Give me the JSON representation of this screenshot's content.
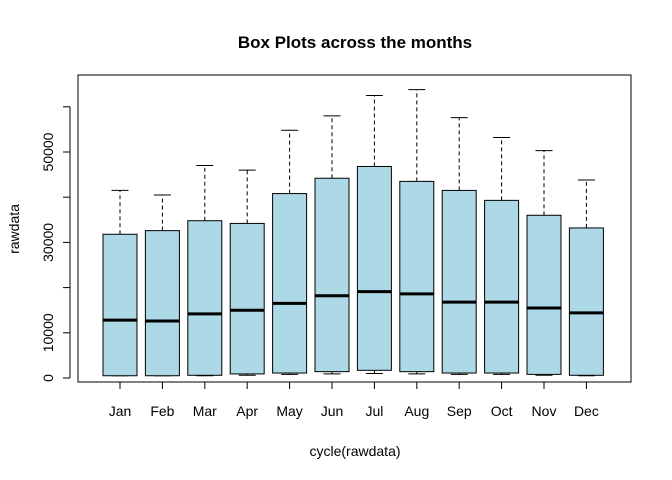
{
  "chart_data": {
    "type": "boxplot",
    "title": "Box Plots across the months",
    "xlabel": "cycle(rawdata)",
    "ylabel": "rawdata",
    "ylim": [
      0,
      65000
    ],
    "yticks": [
      0,
      10000,
      30000,
      50000
    ],
    "ytick_labels": [
      "0",
      "10000",
      "30000",
      "50000"
    ],
    "categories": [
      "Jan",
      "Feb",
      "Mar",
      "Apr",
      "May",
      "Jun",
      "Jul",
      "Aug",
      "Sep",
      "Oct",
      "Nov",
      "Dec"
    ],
    "box_color": "#ADD8E6",
    "boxes": [
      {
        "min": 500,
        "q1": 500,
        "median": 12800,
        "q3": 31800,
        "max": 41500
      },
      {
        "min": 500,
        "q1": 500,
        "median": 12600,
        "q3": 32600,
        "max": 40500
      },
      {
        "min": 500,
        "q1": 600,
        "median": 14200,
        "q3": 34800,
        "max": 47000
      },
      {
        "min": 600,
        "q1": 900,
        "median": 15000,
        "q3": 34200,
        "max": 46000
      },
      {
        "min": 800,
        "q1": 1100,
        "median": 16500,
        "q3": 40800,
        "max": 54800
      },
      {
        "min": 900,
        "q1": 1400,
        "median": 18200,
        "q3": 44200,
        "max": 58000
      },
      {
        "min": 1000,
        "q1": 1700,
        "median": 19100,
        "q3": 46800,
        "max": 62500
      },
      {
        "min": 900,
        "q1": 1400,
        "median": 18600,
        "q3": 43500,
        "max": 63800
      },
      {
        "min": 800,
        "q1": 1100,
        "median": 16800,
        "q3": 41500,
        "max": 57600
      },
      {
        "min": 800,
        "q1": 1100,
        "median": 16800,
        "q3": 39300,
        "max": 53200
      },
      {
        "min": 600,
        "q1": 800,
        "median": 15500,
        "q3": 36000,
        "max": 50300
      },
      {
        "min": 500,
        "q1": 600,
        "median": 14400,
        "q3": 33200,
        "max": 43800
      }
    ]
  }
}
